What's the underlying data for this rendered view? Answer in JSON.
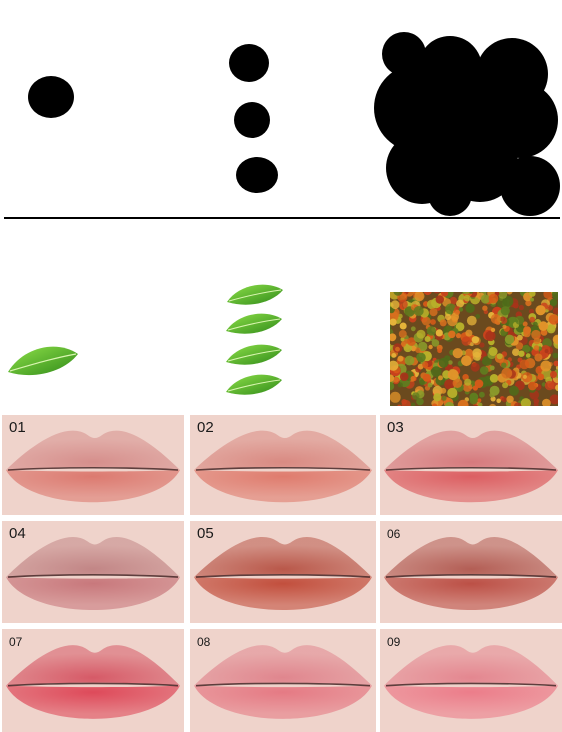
{
  "colors": {
    "dot": "#000000",
    "divider": "#000000",
    "leaf_dark": "#3f8f1f",
    "leaf_light": "#7ccf3a",
    "skin": "#efd3cb"
  },
  "illustration": {
    "dot_groups": [
      "single-dot",
      "three-dots",
      "dot-cluster"
    ],
    "leaf_groups": [
      "single-leaf",
      "four-leaves",
      "forest-photo"
    ]
  },
  "swatches": [
    {
      "number": "01",
      "upper": "#d68f8c",
      "lower": "#dc7a70"
    },
    {
      "number": "02",
      "upper": "#d98a82",
      "lower": "#df7c6e"
    },
    {
      "number": "03",
      "upper": "#d67a7d",
      "lower": "#dc5f62"
    },
    {
      "number": "04",
      "upper": "#c28686",
      "lower": "#c8787c"
    },
    {
      "number": "05",
      "upper": "#b9584a",
      "lower": "#c24f3d"
    },
    {
      "number": "06",
      "upper": "#b35e55",
      "lower": "#bc5046"
    },
    {
      "number": "07",
      "upper": "#d65a67",
      "lower": "#de4a5a"
    },
    {
      "number": "08",
      "upper": "#e0868e",
      "lower": "#e57a84"
    },
    {
      "number": "09",
      "upper": "#e48790",
      "lower": "#ec7d8a"
    }
  ]
}
